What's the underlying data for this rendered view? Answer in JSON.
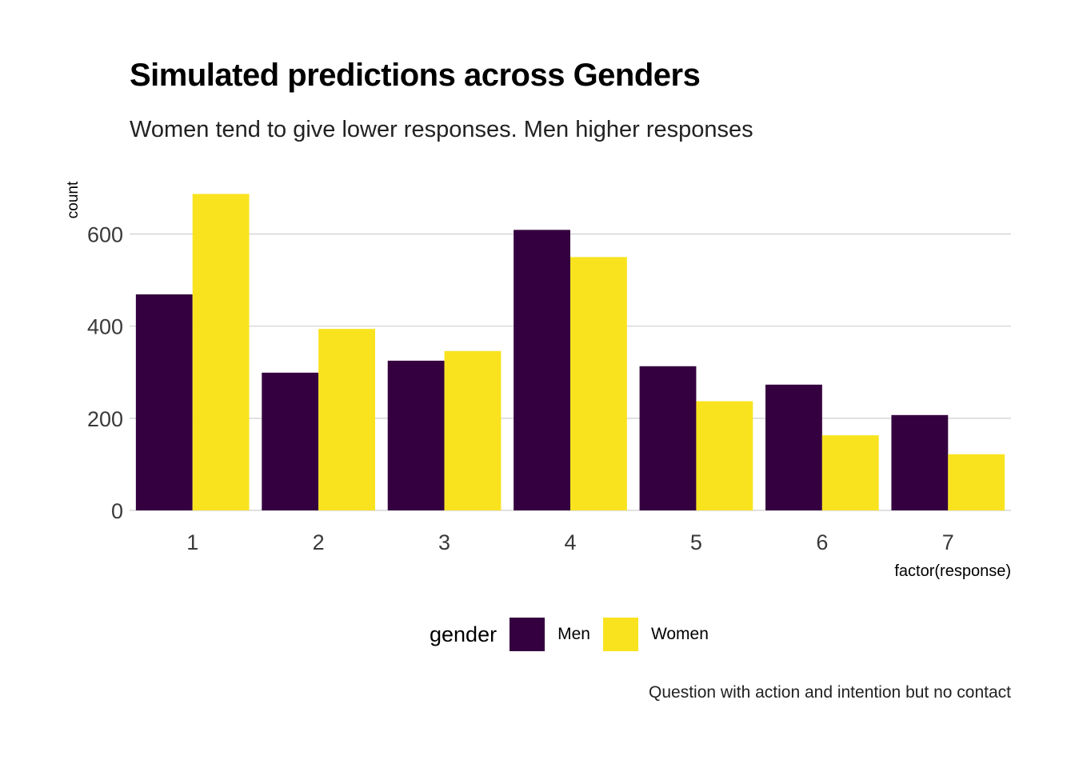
{
  "chart_data": {
    "type": "bar",
    "title": "Simulated predictions across Genders",
    "subtitle": "Women tend to give lower responses. Men higher responses",
    "caption": "Question with action and intention but no contact",
    "xlabel": "factor(response)",
    "ylabel": "count",
    "categories": [
      "1",
      "2",
      "3",
      "4",
      "5",
      "6",
      "7"
    ],
    "ylim": [
      0,
      700
    ],
    "yticks": [
      0,
      200,
      400,
      600
    ],
    "grid": "horizontal",
    "legend": {
      "title": "gender",
      "position": "bottom"
    },
    "series": [
      {
        "name": "Men",
        "color": "#35003f",
        "values": [
          469,
          299,
          325,
          609,
          313,
          273,
          207
        ]
      },
      {
        "name": "Women",
        "color": "#f9e31f",
        "values": [
          687,
          394,
          346,
          550,
          237,
          163,
          122
        ]
      }
    ]
  }
}
